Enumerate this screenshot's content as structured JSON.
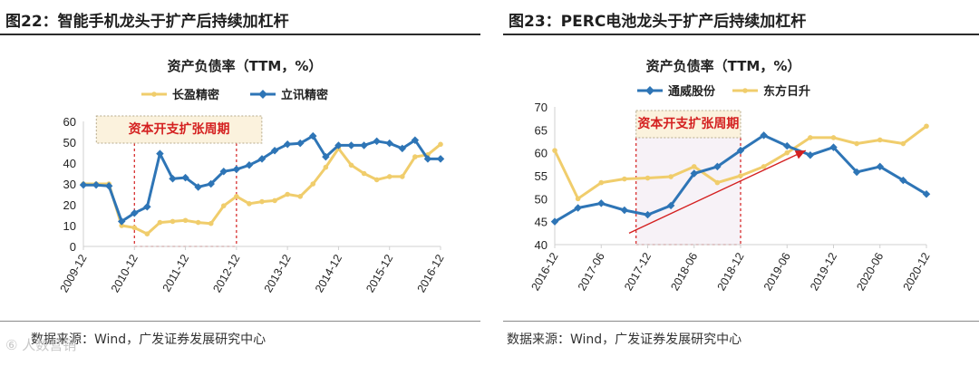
{
  "watermark": "⑥ 人数营销",
  "colors": {
    "blue": "#2e75b6",
    "gold": "#f0cd6c",
    "red": "#d42020",
    "axis": "#d0d0d0",
    "boxfill": "#fbf2dd",
    "boxborder": "#b5a98a"
  },
  "left": {
    "fig_title": "图22：智能手机龙头于扩产后持续加杠杆",
    "source": "数据来源：Wind，广发证券发展研究中心"
  },
  "right": {
    "fig_title": "图23：PERC电池龙头于扩产后持续加杠杆",
    "source": "数据来源：Wind，广发证券发展研究中心"
  },
  "chart_data": [
    {
      "type": "line",
      "title": "资产负债率（TTM，%）",
      "ylim": [
        0,
        60
      ],
      "yticks": [
        0,
        10,
        20,
        30,
        40,
        50,
        60
      ],
      "x_count": 29,
      "xtick_labels": [
        "2009-12",
        "2010-12",
        "2011-12",
        "2012-12",
        "2013-12",
        "2014-12",
        "2015-12",
        "2016-12"
      ],
      "xtick_positions": [
        0,
        4,
        8,
        12,
        16,
        20,
        24,
        28
      ],
      "grid": false,
      "legend": "top",
      "annotation": {
        "label": "资本开支扩张周期",
        "x_from": 4,
        "x_to": 12
      },
      "series": [
        {
          "name": "长盈精密",
          "color": "#f0cd6c",
          "values": [
            30,
            30,
            30,
            10,
            9,
            6,
            11.5,
            12,
            12.5,
            11.5,
            11,
            19.5,
            24,
            20.5,
            21.5,
            22,
            25,
            24,
            30,
            38,
            47,
            39,
            35,
            32,
            33.5,
            33.5,
            43,
            44,
            49
          ]
        },
        {
          "name": "立讯精密",
          "color": "#2e75b6",
          "values": [
            29.5,
            29.5,
            29,
            12,
            16,
            19,
            44.5,
            32.5,
            33,
            28.5,
            30,
            36,
            37,
            39,
            42,
            46,
            49,
            49.5,
            53,
            43,
            48.5,
            48.5,
            48.5,
            50.5,
            49.5,
            47,
            51,
            42,
            42
          ]
        }
      ]
    },
    {
      "type": "line",
      "title": "资产负债率（TTM，%）",
      "ylim": [
        40,
        70
      ],
      "yticks": [
        40,
        45,
        50,
        55,
        60,
        65,
        70
      ],
      "x_count": 17,
      "xtick_labels": [
        "2016-12",
        "2017-06",
        "2017-12",
        "2018-06",
        "2018-12",
        "2019-06",
        "2019-12",
        "2020-06",
        "2020-12"
      ],
      "xtick_positions": [
        0,
        2,
        4,
        6,
        8,
        10,
        12,
        14,
        16
      ],
      "grid": false,
      "legend": "top",
      "annotation": {
        "label": "资本开支扩张周期",
        "x_from": 3.5,
        "x_to": 8,
        "arrow": {
          "from": [
            3.2,
            42.5
          ],
          "to": [
            10.8,
            60.5
          ]
        }
      },
      "series": [
        {
          "name": "通威股份",
          "color": "#2e75b6",
          "values": [
            45,
            48,
            49,
            47.5,
            46.5,
            48.5,
            55.5,
            57,
            60.5,
            63.8,
            61.5,
            59.5,
            61.2,
            55.8,
            57,
            54,
            51
          ]
        },
        {
          "name": "东方日升",
          "color": "#f0cd6c",
          "values": [
            60.5,
            50,
            53.5,
            54.3,
            54.5,
            54.8,
            57,
            53.5,
            55,
            57,
            60,
            63.3,
            63.3,
            62,
            62.8,
            62,
            65.8
          ]
        }
      ]
    }
  ]
}
